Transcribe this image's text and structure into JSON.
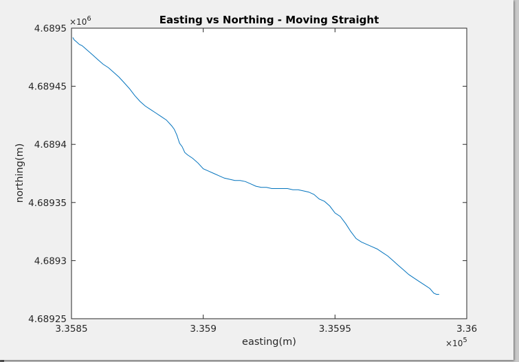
{
  "chart_data": {
    "type": "line",
    "title": "Easting vs Northing - Moving Straight",
    "xlabel": "easting(m)",
    "ylabel": "northing(m)",
    "x_exponent": "×10",
    "x_exponent_power": "5",
    "y_exponent": "×10",
    "y_exponent_power": "6",
    "xlim": [
      335850,
      336000
    ],
    "ylim": [
      4689250,
      4689500
    ],
    "xtick_values": [
      335850,
      335900,
      335950,
      336000
    ],
    "xtick_labels": [
      "3.3585",
      "3.359",
      "3.3595",
      "3.36"
    ],
    "ytick_values": [
      4689250,
      4689300,
      4689350,
      4689400,
      4689450,
      4689500
    ],
    "ytick_labels": [
      "4.68925",
      "4.6893",
      "4.68935",
      "4.6894",
      "4.68945",
      "4.6895"
    ],
    "grid": false,
    "line_color": "#0072bd",
    "series": [
      {
        "x": [
          335850.5,
          335851,
          335852,
          335853,
          335854,
          335855,
          335856,
          335858,
          335860,
          335862,
          335864,
          335866,
          335868,
          335870,
          335872,
          335874,
          335876,
          335878,
          335880,
          335882,
          335884,
          335886,
          335888,
          335889,
          335890,
          335891,
          335892,
          335893,
          335894,
          335896,
          335898,
          335900,
          335902,
          335904,
          335906,
          335908,
          335910,
          335912,
          335914,
          335916,
          335918,
          335920,
          335922,
          335924,
          335926,
          335928,
          335930,
          335932,
          335934,
          335936,
          335938,
          335940,
          335942,
          335944,
          335946,
          335948,
          335950,
          335952,
          335954,
          335956,
          335958,
          335960,
          335962,
          335964,
          335966,
          335968,
          335970,
          335972,
          335974,
          335976,
          335978,
          335980,
          335982,
          335984,
          335986,
          335987.5,
          335988.5,
          335989.5
        ],
        "y": [
          4689492,
          4689490,
          4689488,
          4689486,
          4689485,
          4689483,
          4689481,
          4689477,
          4689473,
          4689469,
          4689466,
          4689462,
          4689458,
          4689453,
          4689448,
          4689442,
          4689437,
          4689433,
          4689430,
          4689427,
          4689424,
          4689421,
          4689416,
          4689413,
          4689408,
          4689401,
          4689398,
          4689393,
          4689391,
          4689388,
          4689384,
          4689379,
          4689377,
          4689375,
          4689373,
          4689371,
          4689370,
          4689369,
          4689369,
          4689368,
          4689366,
          4689364,
          4689363,
          4689363,
          4689362,
          4689362,
          4689362,
          4689362,
          4689361,
          4689361,
          4689360,
          4689359,
          4689357,
          4689353,
          4689351,
          4689347,
          4689341,
          4689338,
          4689332,
          4689325,
          4689319,
          4689316,
          4689314,
          4689312,
          4689310,
          4689307,
          4689304,
          4689300,
          4689296,
          4689292,
          4689288,
          4689285,
          4689282,
          4689279,
          4689276,
          4689272,
          4689271,
          4689271
        ]
      }
    ]
  }
}
